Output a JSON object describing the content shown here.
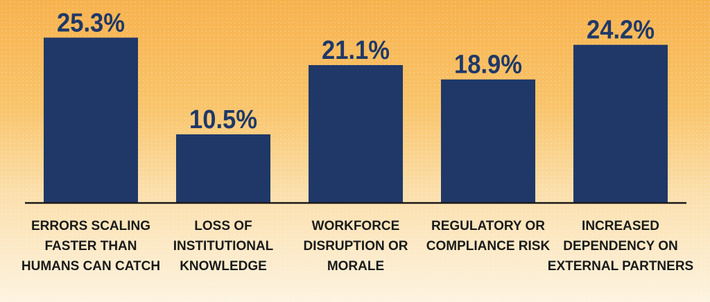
{
  "colors": {
    "bar": "#1f3868",
    "baseline": "#1a1a1a",
    "value_label": "#1f3868",
    "category_label": "#1a1a1a"
  },
  "chart_data": {
    "type": "bar",
    "categories": [
      [
        "ERRORS SCALING",
        "FASTER THAN",
        "HUMANS CAN CATCH"
      ],
      [
        "LOSS OF",
        "INSTITUTIONAL",
        "KNOWLEDGE"
      ],
      [
        "WORKFORCE",
        "DISRUPTION OR",
        "MORALE"
      ],
      [
        "REGULATORY OR",
        "COMPLIANCE RISK"
      ],
      [
        "INCREASED",
        "DEPENDENCY ON",
        "EXTERNAL PARTNERS"
      ]
    ],
    "values": [
      25.3,
      10.5,
      21.1,
      18.9,
      24.2
    ],
    "value_labels": [
      "25.3%",
      "10.5%",
      "21.1%",
      "18.9%",
      "24.2%"
    ],
    "ylim": [
      0,
      30
    ],
    "grid": false,
    "legend": "none"
  }
}
